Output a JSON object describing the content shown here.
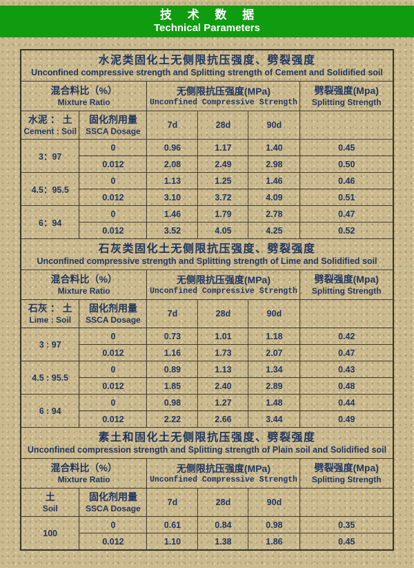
{
  "banner": {
    "title_zh": "技 术 数 据",
    "title_en": "Technical Parameters"
  },
  "colors": {
    "banner_green": "#109c10",
    "page_tan": "#ccba8f",
    "text_navy": "#1e3560",
    "border_dark": "#3a382e"
  },
  "column_headers": {
    "mixture_zh": "混合料比（%）",
    "mixture_en": "Mixture Ratio",
    "ucs_zh": "无侧限抗压强度(MPa)",
    "ucs_en": "Unconfined Compressive Strength",
    "splitting_zh": "劈裂强度(Mpa)",
    "splitting_en": "Splitting Strength",
    "dosage_zh": "固化剂用量",
    "dosage_en": "SSCA Dosage",
    "ages": [
      "7d",
      "28d",
      "90d"
    ]
  },
  "tables": [
    {
      "title_zh": "水泥类固化土无侧限抗压强度、劈裂强度",
      "title_en": "Unconfined compressive strength and Splitting strength of Cement and Solidified soil",
      "ratio_header_zh": "水泥 ： 土",
      "ratio_header_en": "Cement : Soil",
      "groups": [
        {
          "ratio": "3：97",
          "rows": [
            [
              "0",
              "0.96",
              "1.17",
              "1.40",
              "0.45"
            ],
            [
              "0.012",
              "2.08",
              "2.49",
              "2.98",
              "0.50"
            ]
          ]
        },
        {
          "ratio": "4.5：95.5",
          "rows": [
            [
              "0",
              "1.13",
              "1.25",
              "1.46",
              "0.46"
            ],
            [
              "0.012",
              "3.10",
              "3.72",
              "4.09",
              "0.51"
            ]
          ]
        },
        {
          "ratio": "6：94",
          "rows": [
            [
              "0",
              "1.46",
              "1.79",
              "2.78",
              "0.47"
            ],
            [
              "0.012",
              "3.52",
              "4.05",
              "4.25",
              "0.52"
            ]
          ]
        }
      ]
    },
    {
      "title_zh": "石灰类固化土无侧限抗压强度、劈裂强度",
      "title_en": "Unconfined compressive strength and Splitting strength of Lime and Solidified soil",
      "ratio_header_zh": "石灰 ： 土",
      "ratio_header_en": "Lime : Soil",
      "groups": [
        {
          "ratio": "3 : 97",
          "rows": [
            [
              "0",
              "0.73",
              "1.01",
              "1.18",
              "0.42"
            ],
            [
              "0.012",
              "1.16",
              "1.73",
              "2.07",
              "0.47"
            ]
          ]
        },
        {
          "ratio": "4.5 : 95.5",
          "rows": [
            [
              "0",
              "0.89",
              "1.13",
              "1.34",
              "0.43"
            ],
            [
              "0.012",
              "1.85",
              "2.40",
              "2.89",
              "0.48"
            ]
          ]
        },
        {
          "ratio": "6 : 94",
          "rows": [
            [
              "0",
              "0.98",
              "1.27",
              "1.48",
              "0.44"
            ],
            [
              "0.012",
              "2.22",
              "2.66",
              "3.44",
              "0.49"
            ]
          ]
        }
      ]
    },
    {
      "title_zh": "素土和固化土无侧限抗压强度、劈裂强度",
      "title_en": "Unconfined compression strength and Splitting strength of Plain soil and Solidified soil",
      "ratio_header_zh": "土",
      "ratio_header_en": "Soil",
      "groups": [
        {
          "ratio": "100",
          "rows": [
            [
              "0",
              "0.61",
              "0.84",
              "0.98",
              "0.35"
            ],
            [
              "0.012",
              "1.10",
              "1.38",
              "1.86",
              "0.45"
            ]
          ]
        }
      ]
    }
  ]
}
